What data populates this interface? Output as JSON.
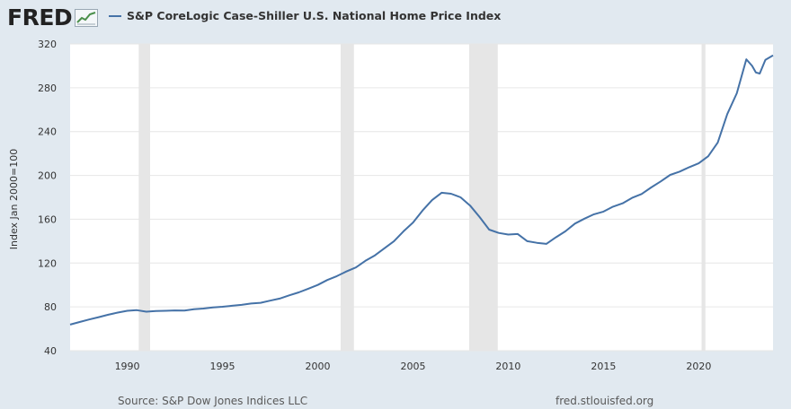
{
  "header": {
    "logo_text": "FRED",
    "series_label": "S&P CoreLogic Case-Shiller U.S. National Home Price Index",
    "series_color": "#4572a7"
  },
  "footer": {
    "source": "Source: S&P Dow Jones Indices LLC",
    "site": "fred.stlouisfed.org"
  },
  "chart_data": {
    "type": "line",
    "ylabel": "Index Jan 2000=100",
    "xlim": [
      1987.0,
      2023.9
    ],
    "ylim": [
      40,
      320
    ],
    "xticks": [
      1990,
      1995,
      2000,
      2005,
      2010,
      2015,
      2020
    ],
    "yticks": [
      40,
      80,
      120,
      160,
      200,
      240,
      280,
      320
    ],
    "grid": true,
    "legend": "top-left",
    "recessions": [
      [
        1990.6,
        1991.2
      ],
      [
        2001.2,
        2001.9
      ],
      [
        2007.95,
        2009.45
      ],
      [
        2020.15,
        2020.35
      ]
    ],
    "series": [
      {
        "name": "S&P CoreLogic Case-Shiller U.S. National Home Price Index",
        "color": "#4572a7",
        "points": [
          [
            1987.0,
            63.8
          ],
          [
            1987.5,
            66.2
          ],
          [
            1988.0,
            68.5
          ],
          [
            1988.5,
            70.6
          ],
          [
            1989.0,
            72.8
          ],
          [
            1989.5,
            74.8
          ],
          [
            1990.0,
            76.4
          ],
          [
            1990.5,
            77.0
          ],
          [
            1991.0,
            75.6
          ],
          [
            1991.5,
            76.3
          ],
          [
            1992.0,
            76.4
          ],
          [
            1992.5,
            76.8
          ],
          [
            1993.0,
            76.7
          ],
          [
            1993.5,
            77.9
          ],
          [
            1994.0,
            78.5
          ],
          [
            1994.5,
            79.5
          ],
          [
            1995.0,
            80.1
          ],
          [
            1995.5,
            81.0
          ],
          [
            1996.0,
            81.8
          ],
          [
            1996.5,
            83.1
          ],
          [
            1997.0,
            83.7
          ],
          [
            1997.5,
            85.7
          ],
          [
            1998.0,
            87.6
          ],
          [
            1998.5,
            90.5
          ],
          [
            1999.0,
            93.2
          ],
          [
            1999.5,
            96.6
          ],
          [
            2000.0,
            100.0
          ],
          [
            2000.5,
            104.5
          ],
          [
            2001.0,
            108.0
          ],
          [
            2001.5,
            112.3
          ],
          [
            2002.0,
            116.0
          ],
          [
            2002.5,
            122.0
          ],
          [
            2003.0,
            127.0
          ],
          [
            2003.5,
            133.5
          ],
          [
            2004.0,
            140.0
          ],
          [
            2004.5,
            149.0
          ],
          [
            2005.0,
            157.0
          ],
          [
            2005.5,
            168.0
          ],
          [
            2006.0,
            177.5
          ],
          [
            2006.5,
            184.2
          ],
          [
            2007.0,
            183.3
          ],
          [
            2007.5,
            180.0
          ],
          [
            2008.0,
            172.5
          ],
          [
            2008.5,
            162.0
          ],
          [
            2009.0,
            150.5
          ],
          [
            2009.5,
            147.5
          ],
          [
            2010.0,
            146.0
          ],
          [
            2010.5,
            146.5
          ],
          [
            2011.0,
            140.0
          ],
          [
            2011.5,
            138.5
          ],
          [
            2012.0,
            137.5
          ],
          [
            2012.5,
            143.5
          ],
          [
            2013.0,
            149.0
          ],
          [
            2013.5,
            156.0
          ],
          [
            2014.0,
            160.5
          ],
          [
            2014.5,
            164.5
          ],
          [
            2015.0,
            167.0
          ],
          [
            2015.5,
            171.5
          ],
          [
            2016.0,
            174.5
          ],
          [
            2016.5,
            179.5
          ],
          [
            2017.0,
            183.0
          ],
          [
            2017.5,
            189.0
          ],
          [
            2018.0,
            194.5
          ],
          [
            2018.5,
            200.5
          ],
          [
            2019.0,
            203.5
          ],
          [
            2019.5,
            207.5
          ],
          [
            2020.0,
            211.0
          ],
          [
            2020.5,
            217.5
          ],
          [
            2021.0,
            230.0
          ],
          [
            2021.5,
            256.0
          ],
          [
            2022.0,
            275.0
          ],
          [
            2022.5,
            306.0
          ],
          [
            2022.8,
            300.0
          ],
          [
            2023.0,
            294.0
          ],
          [
            2023.2,
            293.0
          ],
          [
            2023.5,
            305.5
          ],
          [
            2023.9,
            309.5
          ]
        ]
      }
    ]
  }
}
